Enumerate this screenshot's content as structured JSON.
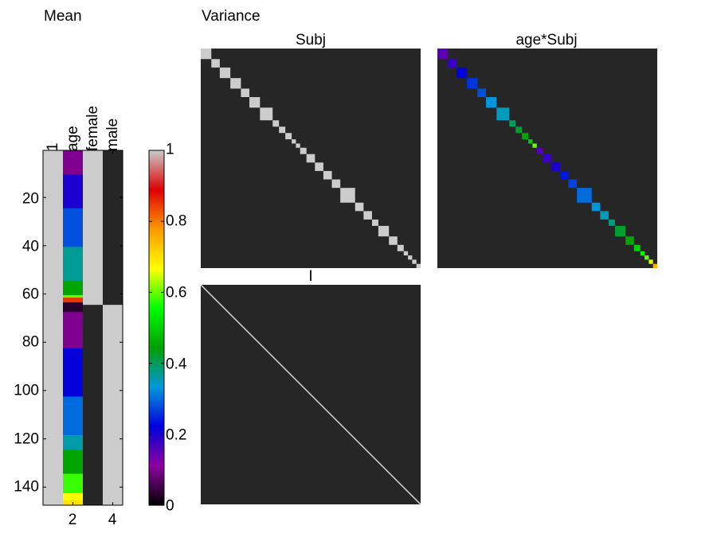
{
  "mean_panel": {
    "title": "Mean",
    "column_labels": [
      "1",
      "age",
      "female",
      "male"
    ],
    "x_ticks": [
      "2",
      "4"
    ],
    "y_ticks": [
      "20",
      "40",
      "60",
      "80",
      "100",
      "120",
      "140"
    ]
  },
  "colorbar": {
    "ticks": [
      "1",
      "0.8",
      "0.6",
      "0.4",
      "0.2",
      "0"
    ],
    "colormap_stops": [
      "#000000",
      "#8e00a0",
      "#0000dd",
      "#0099dd",
      "#00a000",
      "#00ff00",
      "#ffff00",
      "#ff9900",
      "#dd0000",
      "#cccccc"
    ]
  },
  "variance_panel": {
    "title": "Variance",
    "subplots": [
      "Subj",
      "age*Subj",
      "I"
    ]
  },
  "colors": {
    "matrix_background": "#262626",
    "gray_cell": "#cccccc",
    "axis": "#000000"
  },
  "chart_data": [
    {
      "type": "heatmap",
      "title": "Mean",
      "columns": [
        "1",
        "age",
        "female",
        "male"
      ],
      "rows": 147,
      "ylim": [
        1,
        147
      ],
      "xlim": [
        0.5,
        4.5
      ],
      "x_ticks": [
        2,
        4
      ],
      "y_ticks": [
        20,
        40,
        60,
        80,
        100,
        120,
        140
      ],
      "female_rows": [
        1,
        64
      ],
      "male_rows": [
        65,
        147
      ],
      "age_bands": [
        {
          "rows": [
            1,
            10
          ],
          "value": 0.1
        },
        {
          "rows": [
            11,
            24
          ],
          "value": 0.2
        },
        {
          "rows": [
            25,
            40
          ],
          "value": 0.28
        },
        {
          "rows": [
            41,
            54
          ],
          "value": 0.37
        },
        {
          "rows": [
            55,
            60
          ],
          "value": 0.45
        },
        {
          "rows": [
            61,
            61
          ],
          "value": 0.6
        },
        {
          "rows": [
            62,
            63
          ],
          "value": 0.85
        },
        {
          "rows": [
            64,
            67
          ],
          "value": 0.03
        },
        {
          "rows": [
            68,
            82
          ],
          "value": 0.1
        },
        {
          "rows": [
            83,
            102
          ],
          "value": 0.22
        },
        {
          "rows": [
            103,
            118
          ],
          "value": 0.3
        },
        {
          "rows": [
            119,
            124
          ],
          "value": 0.36
        },
        {
          "rows": [
            125,
            134
          ],
          "value": 0.45
        },
        {
          "rows": [
            135,
            142
          ],
          "value": 0.58
        },
        {
          "rows": [
            143,
            145
          ],
          "value": 0.67
        },
        {
          "rows": [
            146,
            147
          ],
          "value": 0.7
        }
      ]
    },
    {
      "type": "heatmap",
      "title": "Subj",
      "description_values": "block diagonal, blocks value 1",
      "block_sizes": [
        5,
        4,
        5,
        5,
        4,
        5,
        6,
        3,
        3,
        3,
        2,
        2,
        3,
        4,
        4,
        4,
        4,
        7,
        4,
        4,
        3,
        5,
        4,
        3,
        2,
        2,
        2,
        2
      ],
      "value": 1
    },
    {
      "type": "heatmap",
      "title": "age*Subj",
      "block_sizes": [
        5,
        4,
        5,
        5,
        4,
        5,
        6,
        3,
        3,
        3,
        2,
        2,
        3,
        4,
        4,
        4,
        4,
        7,
        4,
        4,
        3,
        5,
        4,
        3,
        2,
        2,
        2,
        2
      ],
      "block_values": [
        0.15,
        0.18,
        0.22,
        0.26,
        0.28,
        0.33,
        0.35,
        0.4,
        0.42,
        0.45,
        0.5,
        0.6,
        0.16,
        0.18,
        0.2,
        0.24,
        0.27,
        0.3,
        0.33,
        0.35,
        0.38,
        0.42,
        0.45,
        0.5,
        0.55,
        0.6,
        0.65,
        0.75
      ]
    },
    {
      "type": "heatmap",
      "title": "I",
      "description_values": "identity matrix 147x147",
      "value": 1
    }
  ]
}
